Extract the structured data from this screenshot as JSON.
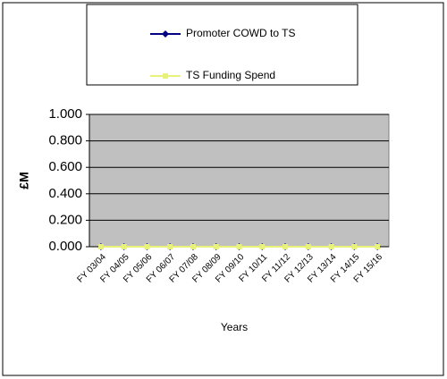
{
  "chart_data": {
    "type": "line",
    "categories": [
      "FY 03/04",
      "FY 04/05",
      "FY 05/06",
      "FY 06/07",
      "FY 07/08",
      "FY 08/09",
      "FY 09/10",
      "FY 10/11",
      "FY 11/12",
      "FY 12/13",
      "FY 13/14",
      "FY 14/15",
      "FY 15/16"
    ],
    "series": [
      {
        "name": "Promoter COWD to TS",
        "color": "#000080",
        "values": [
          0,
          0,
          0,
          0,
          0,
          0,
          0,
          0,
          0,
          0,
          0,
          0,
          0
        ]
      },
      {
        "name": "TS Funding Spend",
        "color": "#e8f27a",
        "values": [
          0,
          0,
          0,
          0,
          0,
          0,
          0,
          0,
          0,
          0,
          0,
          0,
          0
        ]
      }
    ],
    "x_label": "Years",
    "y_label": "£M",
    "ylim": [
      0,
      1
    ],
    "yticks": [
      {
        "value": 0,
        "label": "0.000"
      },
      {
        "value": 0.2,
        "label": "0.200"
      },
      {
        "value": 0.4,
        "label": "0.400"
      },
      {
        "value": 0.6,
        "label": "0.600"
      },
      {
        "value": 0.8,
        "label": "0.800"
      },
      {
        "value": 1,
        "label": "1.000"
      }
    ],
    "grid": true,
    "plot_background": "#c0c0c0",
    "legend": "top"
  }
}
